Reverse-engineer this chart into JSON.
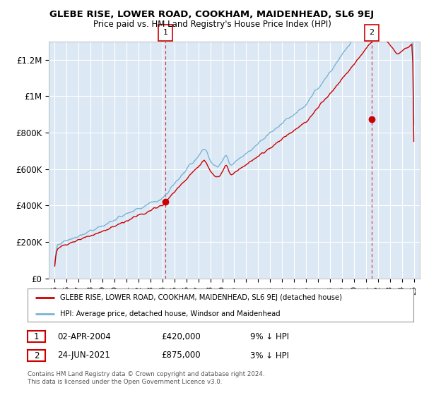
{
  "title": "GLEBE RISE, LOWER ROAD, COOKHAM, MAIDENHEAD, SL6 9EJ",
  "subtitle": "Price paid vs. HM Land Registry's House Price Index (HPI)",
  "ylabel_ticks": [
    "£0",
    "£200K",
    "£400K",
    "£600K",
    "£800K",
    "£1M",
    "£1.2M"
  ],
  "ytick_values": [
    0,
    200000,
    400000,
    600000,
    800000,
    1000000,
    1200000
  ],
  "ylim": [
    0,
    1300000
  ],
  "xlim_start": 1994.5,
  "xlim_end": 2025.5,
  "hpi_color": "#7ab3d4",
  "price_color": "#cc0000",
  "plot_bg_color": "#dce9f5",
  "marker1_x": 2004.25,
  "marker1_y": 420000,
  "marker2_x": 2021.48,
  "marker2_y": 875000,
  "legend_line1": "GLEBE RISE, LOWER ROAD, COOKHAM, MAIDENHEAD, SL6 9EJ (detached house)",
  "legend_line2": "HPI: Average price, detached house, Windsor and Maidenhead",
  "table_row1": [
    "1",
    "02-APR-2004",
    "£420,000",
    "9% ↓ HPI"
  ],
  "table_row2": [
    "2",
    "24-JUN-2021",
    "£875,000",
    "3% ↓ HPI"
  ],
  "footnote": "Contains HM Land Registry data © Crown copyright and database right 2024.\nThis data is licensed under the Open Government Licence v3.0.",
  "background_color": "#ffffff",
  "grid_color": "#b0c8e0"
}
